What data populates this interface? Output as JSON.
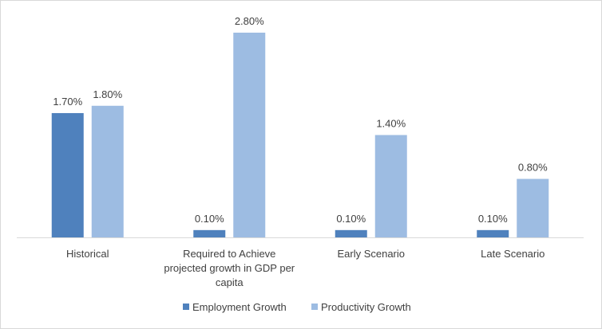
{
  "chart_data": {
    "type": "bar",
    "categories": [
      [
        "Historical"
      ],
      [
        "Required to Achieve",
        "projected growth in GDP per",
        "capita"
      ],
      [
        "Early Scenario"
      ],
      [
        "Late Scenario"
      ]
    ],
    "series": [
      {
        "name": "Employment Growth",
        "color": "#4f81bd",
        "values": [
          1.7,
          0.1,
          0.1,
          0.1
        ],
        "labels": [
          "1.70%",
          "0.10%",
          "0.10%",
          "0.10%"
        ]
      },
      {
        "name": "Productivity Growth",
        "color": "#9dbce2",
        "values": [
          1.8,
          2.8,
          1.4,
          0.8
        ],
        "labels": [
          "1.80%",
          "2.80%",
          "1.40%",
          "0.80%"
        ]
      }
    ],
    "ylim": [
      0,
      2.8
    ],
    "value_axis_visible": false,
    "grid": false,
    "legend": "bottom",
    "baseline_color": "#d9d9d9"
  }
}
